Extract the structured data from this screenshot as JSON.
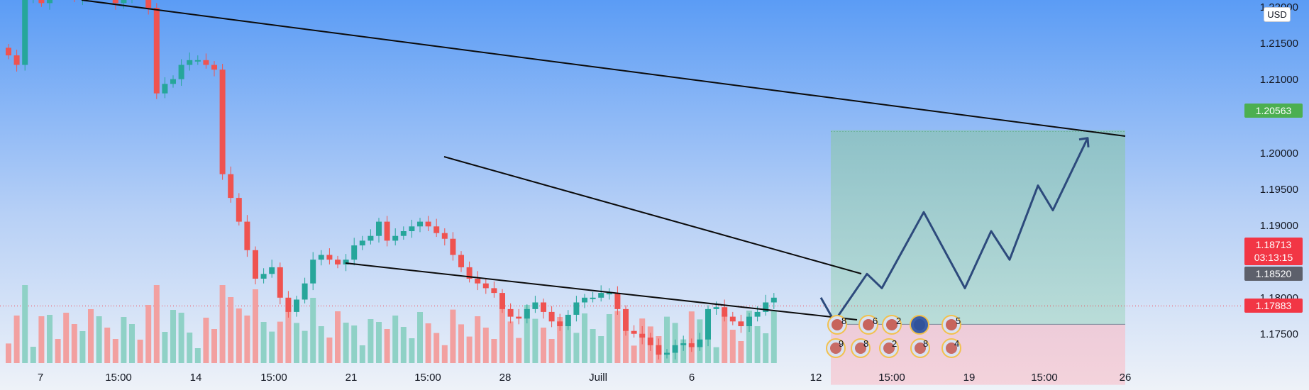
{
  "currency": "USD",
  "price_axis": {
    "ticks": [
      "1.22000",
      "1.21500",
      "1.21000",
      "1.20000",
      "1.19500",
      "1.19000",
      "1.18000",
      "1.17500"
    ]
  },
  "time_axis": {
    "ticks": [
      "7",
      "15:00",
      "14",
      "15:00",
      "21",
      "15:00",
      "28",
      "Juill",
      "6",
      "15:00",
      "12",
      "15:00",
      "19",
      "15:00",
      "26"
    ]
  },
  "price_labels": {
    "target": {
      "value": "1.20563",
      "color": "#4caf50"
    },
    "current": {
      "value": "1.18713",
      "countdown": "03:13:15",
      "color": "#f23645"
    },
    "entry": {
      "value": "1.18520",
      "color": "#5d606b"
    },
    "stop": {
      "value": "1.17883",
      "color": "#f23645"
    }
  },
  "colors": {
    "up": "#26a69a",
    "down": "#ef5350",
    "background_top": "#5b9cf5",
    "background_bottom": "#eef2f8"
  },
  "chart_data": {
    "type": "candlestick",
    "title": "",
    "ylim": [
      1.1725,
      1.2205
    ],
    "close_series": [
      1.2135,
      1.2125,
      1.2195,
      1.2195,
      1.219,
      1.221,
      1.2205,
      1.22,
      1.2195,
      1.2205,
      1.22,
      1.221,
      1.22,
      1.219,
      1.2195,
      1.2205,
      1.22,
      1.2185,
      1.2095,
      1.2105,
      1.211,
      1.2125,
      1.213,
      1.213,
      1.2125,
      1.212,
      1.201,
      1.1985,
      1.196,
      1.193,
      1.19,
      1.1905,
      1.1912,
      1.188,
      1.1865,
      1.1878,
      1.1895,
      1.192,
      1.1925,
      1.192,
      1.1915,
      1.192,
      1.1935,
      1.194,
      1.1945,
      1.196,
      1.194,
      1.1945,
      1.195,
      1.1955,
      1.196,
      1.1955,
      1.1948,
      1.1942,
      1.1925,
      1.1912,
      1.19,
      1.1895,
      1.189,
      1.1885,
      1.1868,
      1.186,
      1.1858,
      1.1868,
      1.1875,
      1.1865,
      1.1855,
      1.185,
      1.1862,
      1.1875,
      1.188,
      1.188,
      1.1885,
      1.1885,
      1.1868,
      1.1845,
      1.1842,
      1.1838,
      1.183,
      1.182,
      1.1822,
      1.183,
      1.1832,
      1.1828,
      1.1836,
      1.1868,
      1.187,
      1.186,
      1.1855,
      1.185,
      1.186,
      1.1865,
      1.1875,
      1.188
    ],
    "trendlines": [
      {
        "name": "upper",
        "points": [
          [
            "7",
            1.2215
          ],
          [
            "26",
            1.2022
          ]
        ]
      },
      {
        "name": "channel-top",
        "points": [
          [
            "27 juin",
            1.198
          ],
          [
            "12 juil",
            1.185
          ]
        ]
      },
      {
        "name": "channel-bottom",
        "points": [
          [
            "21",
            1.1866
          ],
          [
            "12 juil",
            1.179
          ]
        ]
      }
    ],
    "projection_path": [
      1.188,
      1.1855,
      1.1905,
      1.189,
      1.197,
      1.189,
      1.195,
      1.192,
      1.1998,
      1.1972,
      1.2048
    ],
    "position": {
      "target": 1.20563,
      "entry": 1.1852,
      "stop": 1.17883
    },
    "current_price": 1.18713
  }
}
